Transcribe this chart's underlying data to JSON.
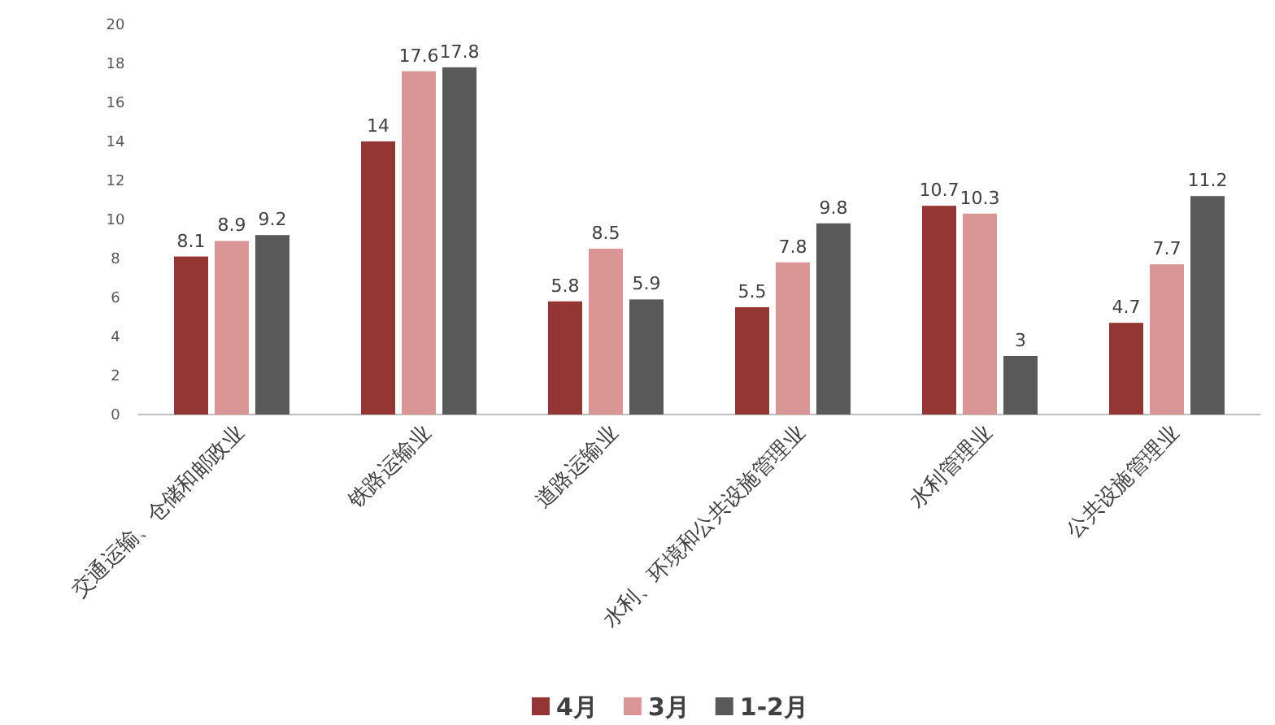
{
  "chart_data": {
    "type": "bar",
    "categories": [
      "交通运输、仓储和邮政业",
      "铁路运输业",
      "道路运输业",
      "水利、环境和公共设施管理业",
      "水利管理业",
      "公共设施管理业"
    ],
    "series": [
      {
        "name": "4月",
        "color": "#943634",
        "values": [
          8.1,
          14,
          5.8,
          5.5,
          10.7,
          4.7
        ]
      },
      {
        "name": "3月",
        "color": "#d99694",
        "values": [
          8.9,
          17.6,
          8.5,
          7.8,
          10.3,
          7.7
        ]
      },
      {
        "name": "1-2月",
        "color": "#595959",
        "values": [
          9.2,
          17.8,
          5.9,
          9.8,
          3,
          11.2
        ]
      }
    ],
    "ylim": [
      0,
      20
    ],
    "yticks": [
      0,
      2,
      4,
      6,
      8,
      10,
      12,
      14,
      16,
      18,
      20
    ],
    "data_labels": true,
    "legend": "bottom"
  }
}
